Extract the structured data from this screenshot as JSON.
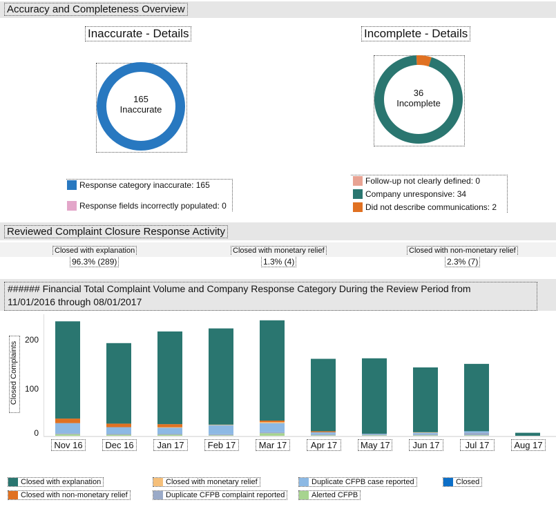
{
  "overview": {
    "header": "Accuracy and Completeness Overview",
    "inaccurate": {
      "title": "Inaccurate - Details",
      "center_value": "165",
      "center_label": "Inaccurate",
      "legend": [
        {
          "label": "Response category inaccurate: 165",
          "color": "#2878c0"
        },
        {
          "label": "Response fields incorrectly populated: 0",
          "color": "#e3a6c9"
        }
      ]
    },
    "incomplete": {
      "title": "Incomplete - Details",
      "center_value": "36",
      "center_label": "Incomplete",
      "legend": [
        {
          "label": "Follow-up not clearly defined: 0",
          "color": "#e8a393"
        },
        {
          "label": "Company unresponsive: 34",
          "color": "#2a7670"
        },
        {
          "label": "Did not describe communications: 2",
          "color": "#e07122"
        }
      ]
    }
  },
  "closure": {
    "header": "Reviewed Complaint Closure Response Activity",
    "metrics": [
      {
        "label": "Closed with explanation",
        "value": "96.3% (289)"
      },
      {
        "label": "Closed with monetary relief",
        "value": "1.3% (4)"
      },
      {
        "label": "Closed with non-monetary relief",
        "value": "2.3% (7)"
      }
    ]
  },
  "volume": {
    "header_line1": "###### Financial Total Complaint Volume and Company Response Category During the Review Period from",
    "header_line2": "11/01/2016 through 08/01/2017",
    "ylabel": "Closed Complaints",
    "yticks": [
      "200",
      "100",
      "0"
    ]
  },
  "chart_data": [
    {
      "type": "pie",
      "title": "Inaccurate - Details",
      "labels": [
        "Response category inaccurate",
        "Response fields incorrectly populated"
      ],
      "values": [
        165,
        0
      ],
      "colors": [
        "#2878c0",
        "#e3a6c9"
      ]
    },
    {
      "type": "pie",
      "title": "Incomplete - Details",
      "labels": [
        "Follow-up not clearly defined",
        "Company unresponsive",
        "Did not describe communications"
      ],
      "values": [
        0,
        34,
        2
      ],
      "colors": [
        "#e8a393",
        "#2a7670",
        "#e07122"
      ]
    },
    {
      "type": "bar",
      "stacked": true,
      "title": "###### Financial Total Complaint Volume and Company Response Category During the Review Period from 11/01/2016 through 08/01/2017",
      "ylabel": "Closed Complaints",
      "ylim": [
        0,
        240
      ],
      "categories": [
        "Nov 16",
        "Dec 16",
        "Jan 17",
        "Feb 17",
        "Mar 17",
        "Apr 17",
        "May 17",
        "Jun 17",
        "Jul 17",
        "Aug 17"
      ],
      "series": [
        {
          "name": "Alerted CFPB",
          "color": "#a7d48f",
          "values": [
            3,
            2,
            2,
            1,
            5,
            1,
            1,
            1,
            1,
            0
          ]
        },
        {
          "name": "Duplicate CFPB complaint reported",
          "color": "#9aaac8",
          "values": [
            2,
            2,
            2,
            2,
            2,
            2,
            2,
            2,
            5,
            0
          ]
        },
        {
          "name": "Duplicate CFPB case reported",
          "color": "#8db9e4",
          "values": [
            20,
            13,
            12,
            18,
            18,
            4,
            1,
            3,
            3,
            0
          ]
        },
        {
          "name": "Closed with monetary relief",
          "color": "#f5bf7a",
          "values": [
            0,
            0,
            1,
            1,
            2,
            0,
            0,
            1,
            0,
            0
          ]
        },
        {
          "name": "Closed with non-monetary relief",
          "color": "#e07122",
          "values": [
            9,
            7,
            6,
            0,
            3,
            2,
            0,
            0,
            0,
            0
          ]
        },
        {
          "name": "Closed with explanation",
          "color": "#2a7670",
          "values": [
            192,
            159,
            183,
            190,
            198,
            143,
            149,
            128,
            133,
            6
          ]
        },
        {
          "name": "Closed",
          "color": "#0c6fc8",
          "values": [
            0,
            0,
            0,
            0,
            0,
            0,
            0,
            0,
            0,
            0
          ]
        }
      ],
      "legend_order": [
        "Closed with explanation",
        "Closed with non-monetary relief",
        "Closed with monetary relief",
        "Duplicate CFPB complaint reported",
        "Duplicate CFPB case reported",
        "Alerted CFPB",
        "Closed"
      ]
    }
  ]
}
